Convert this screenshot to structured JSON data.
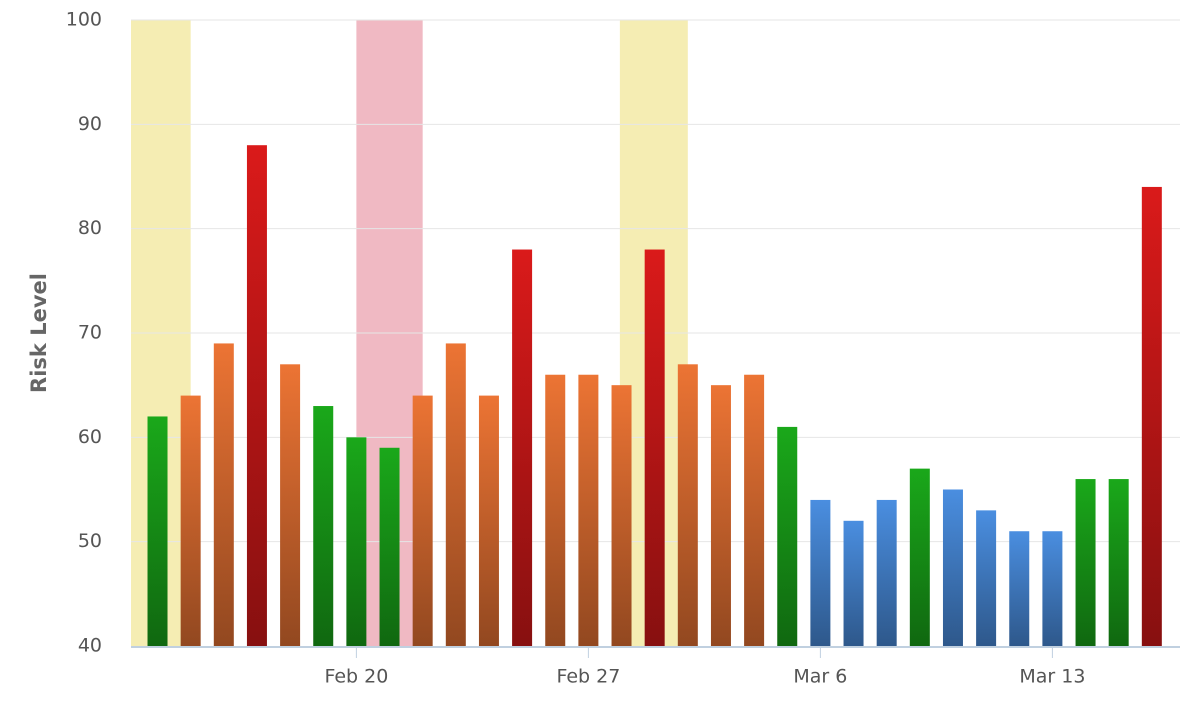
{
  "chart_data": {
    "type": "bar",
    "y_axis_title": "Risk Level",
    "categories": [
      null,
      null,
      null,
      null,
      null,
      null,
      "Feb 20",
      null,
      null,
      null,
      null,
      null,
      null,
      "Feb 27",
      null,
      null,
      null,
      null,
      null,
      null,
      "Mar 6",
      null,
      null,
      null,
      null,
      null,
      null,
      "Mar 13",
      null,
      null,
      null
    ],
    "values": [
      62,
      64,
      69,
      88,
      67,
      63,
      60,
      59,
      64,
      69,
      64,
      78,
      66,
      66,
      65,
      78,
      67,
      65,
      66,
      61,
      54,
      52,
      54,
      57,
      55,
      53,
      51,
      51,
      56,
      56,
      84
    ],
    "colors": [
      "#1aa81a",
      "#ec7434",
      "#ec7434",
      "#da1a1a",
      "#ec7434",
      "#1aa81a",
      "#1aa81a",
      "#1aa81a",
      "#ec7434",
      "#ec7434",
      "#ec7434",
      "#da1a1a",
      "#ec7434",
      "#ec7434",
      "#ec7434",
      "#da1a1a",
      "#ec7434",
      "#ec7434",
      "#ec7434",
      "#1aa81a",
      "#4a8ee0",
      "#4a8ee0",
      "#4a8ee0",
      "#1aa81a",
      "#4a8ee0",
      "#4a8ee0",
      "#4a8ee0",
      "#4a8ee0",
      "#1aa81a",
      "#1aa81a",
      "#da1a1a"
    ],
    "bands": [
      {
        "from": -0.8,
        "to": 1.0,
        "color": "#f5edb3"
      },
      {
        "from": 6.0,
        "to": 8.0,
        "color": "#f0b9c3"
      },
      {
        "from": 13.95,
        "to": 16.0,
        "color": "#f5edb3"
      }
    ],
    "xlim": [
      -0.8,
      30.85
    ],
    "ylim": [
      40,
      100
    ],
    "yticks": [
      40,
      50,
      60,
      70,
      80,
      90,
      100
    ],
    "grid": true
  }
}
